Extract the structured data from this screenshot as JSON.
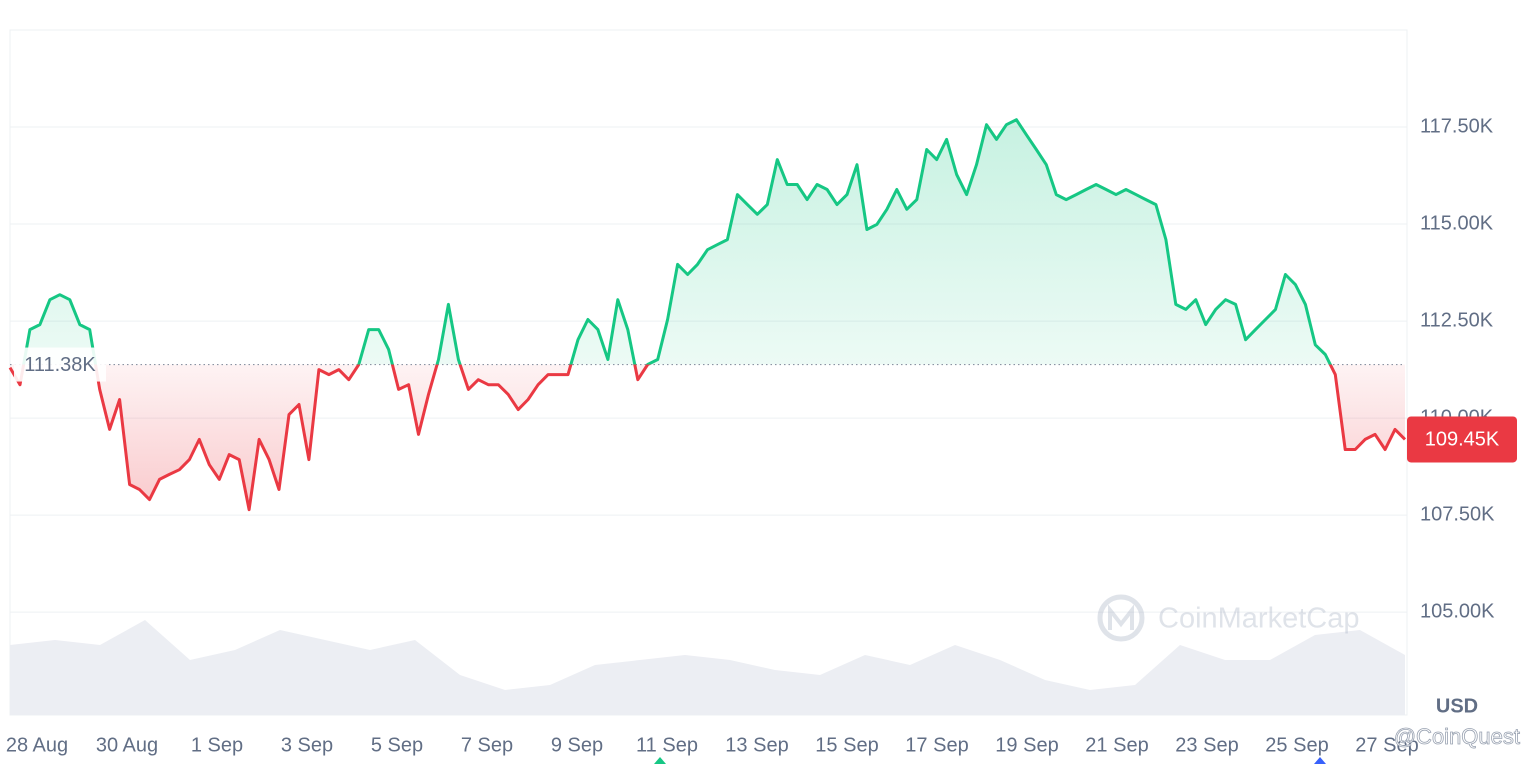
{
  "chart_data": {
    "type": "baseline-area",
    "currency": "USD",
    "watermark": "CoinMarketCap",
    "credit": "@CoinQuest",
    "up_color": "#16c784",
    "down_color": "#ea3943",
    "baseline": {
      "value": 111380,
      "label": "111.38K"
    },
    "current": {
      "value": 109450,
      "label": "109.45K"
    },
    "ylim": [
      102350,
      120000
    ],
    "yticks": [
      {
        "value": 105000,
        "label": "105.00K"
      },
      {
        "value": 107500,
        "label": "107.50K"
      },
      {
        "value": 110000,
        "label": "110.00K"
      },
      {
        "value": 112500,
        "label": "112.50K"
      },
      {
        "value": 115000,
        "label": "115.00K"
      },
      {
        "value": 117500,
        "label": "117.50K"
      }
    ],
    "grid": true,
    "xticks": [
      "28 Aug",
      "30 Aug",
      "1 Sep",
      "3 Sep",
      "5 Sep",
      "7 Sep",
      "9 Sep",
      "11 Sep",
      "13 Sep",
      "15 Sep",
      "17 Sep",
      "19 Sep",
      "21 Sep",
      "23 Sep",
      "25 Sep",
      "27 Sep"
    ],
    "values": [
      111300,
      110860,
      112280,
      112410,
      113050,
      113180,
      113050,
      112410,
      112280,
      110740,
      109710,
      110480,
      108290,
      108160,
      107900,
      108420,
      108550,
      108670,
      108930,
      109450,
      108800,
      108420,
      109060,
      108930,
      107640,
      109450,
      108930,
      108160,
      110090,
      110350,
      108930,
      111250,
      111120,
      111250,
      110990,
      111380,
      112280,
      112280,
      111770,
      110740,
      110860,
      109580,
      110610,
      111510,
      112930,
      111510,
      110740,
      110990,
      110860,
      110860,
      110610,
      110220,
      110480,
      110860,
      111120,
      111120,
      111120,
      112020,
      112540,
      112280,
      111510,
      113050,
      112280,
      110990,
      111380,
      111510,
      112540,
      113960,
      113700,
      113960,
      114340,
      114470,
      114600,
      115760,
      115500,
      115250,
      115500,
      116660,
      116020,
      116020,
      115630,
      116020,
      115890,
      115500,
      115760,
      116530,
      114860,
      114990,
      115380,
      115890,
      115380,
      115630,
      116920,
      116660,
      117180,
      116280,
      115760,
      116530,
      117560,
      117180,
      117560,
      117690,
      117300,
      116920,
      116530,
      115760,
      115630,
      115760,
      115890,
      116020,
      115890,
      115760,
      115890,
      115760,
      115630,
      115500,
      114600,
      112930,
      112800,
      113050,
      112410,
      112800,
      113050,
      112930,
      112020,
      112280,
      112540,
      112800,
      113700,
      113440,
      112930,
      111890,
      111640,
      111120,
      109190,
      109190,
      109450,
      109580,
      109190,
      109710,
      109450
    ],
    "volume": {
      "color": "#eceef3",
      "vlim": [
        0,
        100
      ],
      "values": [
        70,
        75,
        70,
        95,
        55,
        65,
        85,
        75,
        65,
        75,
        40,
        25,
        30,
        50,
        55,
        60,
        55,
        45,
        40,
        60,
        50,
        70,
        55,
        35,
        25,
        30,
        70,
        55,
        55,
        80,
        85,
        60
      ]
    }
  }
}
